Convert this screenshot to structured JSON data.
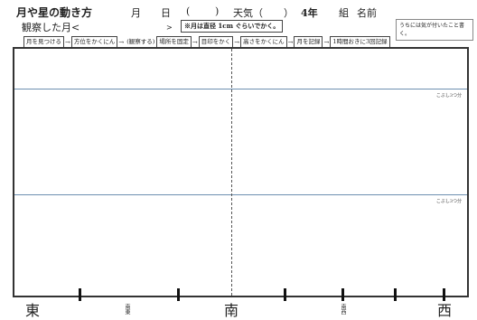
{
  "header": {
    "title": "月や星の動き方",
    "month": "月",
    "day": "日",
    "paren_left": "(",
    "paren_right": ")",
    "weather": "天気（",
    "weather_close": "）",
    "grade": "4年",
    "class": "組",
    "name": "名前"
  },
  "observed_moon": "観察した月<",
  "arrow_mark": ">",
  "size_note": "※月は直径 1cm ぐらいでかく。",
  "memo": "うちには気が付いたこと書く。",
  "steps": [
    "月を見つける",
    "方位をかくにん",
    "(観察する)",
    "場所を固定",
    "目印をかく",
    "高さをかくにん",
    "月を記録",
    "1時間おきに3回記録"
  ],
  "fist_labels": [
    "こぶし3つ分",
    "こぶし3つ分"
  ],
  "directions": {
    "east": "東",
    "south": "南",
    "west": "西",
    "southeast": "南東",
    "southwest": "南西"
  }
}
